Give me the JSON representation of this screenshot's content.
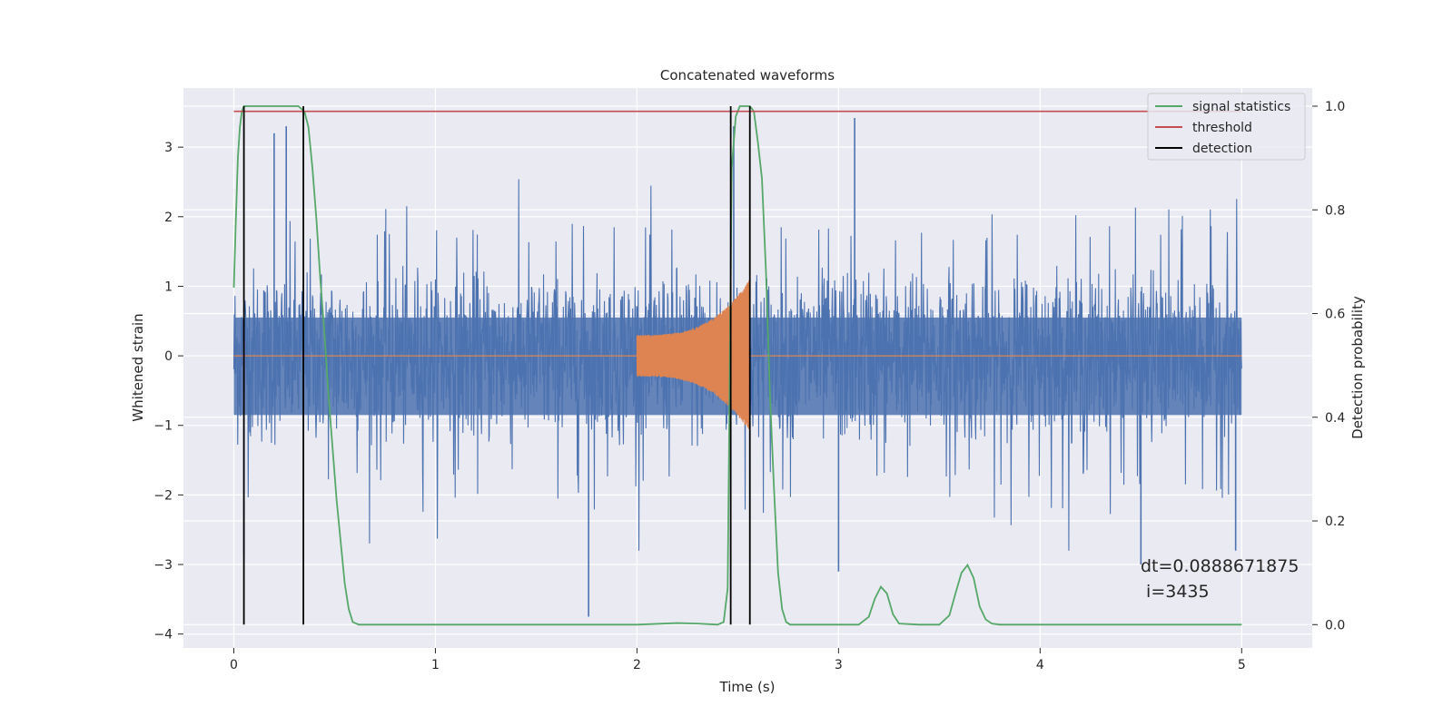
{
  "chart_data": {
    "type": "line",
    "title": "Concatenated waveforms",
    "xlabel": "Time (s)",
    "ylabel": "Whitened strain",
    "ylabel_right": "Detection probability",
    "xlim": [
      -0.25,
      5.35
    ],
    "ylim": [
      -4.2,
      3.85
    ],
    "ylim_right": [
      -0.045,
      1.035
    ],
    "x_ticks": [
      "0",
      "1",
      "2",
      "3",
      "4",
      "5"
    ],
    "y_ticks": [
      "3",
      "2",
      "1",
      "0",
      "−1",
      "−2",
      "−3",
      "−4"
    ],
    "y_ticks_right": [
      "1.0",
      "0.8",
      "0.6",
      "0.4",
      "0.2",
      "0.0"
    ],
    "grid": true,
    "legend_position": "top-right",
    "background": "#eaeaf2",
    "series": [
      {
        "type": "noise",
        "color": "#4c72b0",
        "x_range": [
          0,
          5
        ],
        "typical_abs_max": 2.0,
        "spikes": [
          [
            0.05,
            -2.85
          ],
          [
            0.2,
            3.2
          ],
          [
            0.26,
            3.3
          ],
          [
            1.76,
            -3.75
          ],
          [
            2.48,
            3.3
          ],
          [
            3.08,
            3.42
          ],
          [
            3.0,
            -3.1
          ],
          [
            4.5,
            -3.0
          ],
          [
            4.97,
            -2.8
          ]
        ]
      },
      {
        "type": "chirp",
        "color": "#dd8452",
        "x_range": [
          2.0,
          2.56
        ],
        "amplitude_start": 0.3,
        "amplitude_peak": 1.1,
        "tail_end": 3.0
      },
      {
        "name": "signal statistics",
        "color": "#55a868",
        "axis": "right",
        "x": [
          0.0,
          0.01,
          0.02,
          0.03,
          0.04,
          0.05,
          0.06,
          0.08,
          0.12,
          0.18,
          0.26,
          0.32,
          0.35,
          0.37,
          0.39,
          0.41,
          0.43,
          0.45,
          0.47,
          0.49,
          0.51,
          0.53,
          0.55,
          0.57,
          0.59,
          0.62,
          0.7,
          1.0,
          1.5,
          2.0,
          2.2,
          2.3,
          2.4,
          2.43,
          2.45,
          2.47,
          2.49,
          2.51,
          2.53,
          2.56,
          2.58,
          2.6,
          2.62,
          2.64,
          2.66,
          2.68,
          2.7,
          2.72,
          2.74,
          2.76,
          2.8,
          3.0,
          3.1,
          3.15,
          3.18,
          3.21,
          3.24,
          3.27,
          3.3,
          3.4,
          3.5,
          3.55,
          3.58,
          3.61,
          3.64,
          3.67,
          3.7,
          3.73,
          3.76,
          3.8,
          4.0,
          4.5,
          5.0
        ],
        "y": [
          0.65,
          0.78,
          0.9,
          0.96,
          0.99,
          1.0,
          1.0,
          1.0,
          1.0,
          1.0,
          1.0,
          1.0,
          0.99,
          0.96,
          0.88,
          0.78,
          0.66,
          0.56,
          0.44,
          0.34,
          0.24,
          0.16,
          0.08,
          0.03,
          0.005,
          0.0,
          0.0,
          0.0,
          0.0,
          0.0,
          0.003,
          0.002,
          0.0,
          0.005,
          0.07,
          0.88,
          0.98,
          1.0,
          1.0,
          1.0,
          0.99,
          0.93,
          0.86,
          0.68,
          0.44,
          0.26,
          0.1,
          0.03,
          0.005,
          0.0,
          0.0,
          0.0,
          0.0,
          0.015,
          0.05,
          0.073,
          0.06,
          0.02,
          0.002,
          0.0,
          0.0,
          0.018,
          0.06,
          0.1,
          0.115,
          0.09,
          0.035,
          0.01,
          0.002,
          0.0,
          0.0,
          0.0,
          0.0
        ]
      },
      {
        "name": "threshold",
        "color": "#c44e52",
        "axis": "right",
        "x": [
          0,
          5
        ],
        "y": [
          0.99,
          0.99
        ]
      },
      {
        "name": "detection",
        "color": "#000000",
        "type": "vlines",
        "x": [
          0.05,
          0.345,
          2.465,
          2.56
        ],
        "y_range": [
          0.0,
          1.0
        ]
      }
    ],
    "annotation": {
      "line1": "dt=0.0888671875",
      "line2": " i=3435"
    }
  }
}
